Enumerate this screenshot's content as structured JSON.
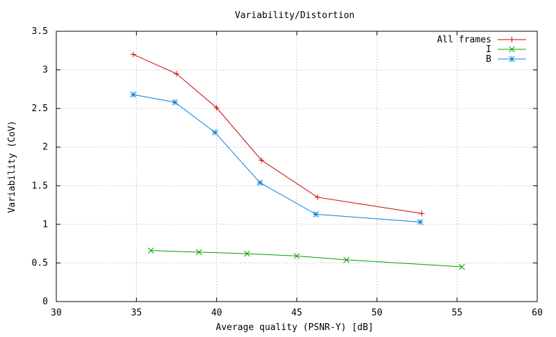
{
  "chart_data": {
    "type": "line",
    "title": "Variability/Distortion",
    "xlabel": "Average quality (PSNR-Y) [dB]",
    "ylabel": "Variability (CoV)",
    "xlim": [
      30,
      60
    ],
    "ylim": [
      0,
      3.5
    ],
    "xticks": [
      30,
      35,
      40,
      45,
      50,
      55,
      60
    ],
    "yticks": [
      0,
      0.5,
      1,
      1.5,
      2,
      2.5,
      3,
      3.5
    ],
    "xtick_labels": [
      "30",
      "35",
      "40",
      "45",
      "50",
      "55",
      "60"
    ],
    "ytick_labels": [
      "0",
      "0.5",
      "1",
      "1.5",
      "2",
      "2.5",
      "3",
      "3.5"
    ],
    "grid": true,
    "legend_position": "top-right",
    "series": [
      {
        "name": "All frames",
        "color": "#cc0000",
        "marker": "plus",
        "x": [
          34.8,
          37.5,
          40.0,
          42.8,
          46.3,
          52.8
        ],
        "y": [
          3.2,
          2.95,
          2.51,
          1.83,
          1.35,
          1.14
        ]
      },
      {
        "name": "I",
        "color": "#00a000",
        "marker": "cross",
        "x": [
          35.9,
          38.9,
          41.9,
          45.0,
          48.1,
          55.3
        ],
        "y": [
          0.66,
          0.64,
          0.62,
          0.59,
          0.54,
          0.45
        ]
      },
      {
        "name": "B",
        "color": "#0080e0",
        "marker": "star",
        "x": [
          34.8,
          37.4,
          39.9,
          42.7,
          46.2,
          52.7
        ],
        "y": [
          2.68,
          2.58,
          2.19,
          1.54,
          1.13,
          1.03
        ]
      }
    ]
  }
}
